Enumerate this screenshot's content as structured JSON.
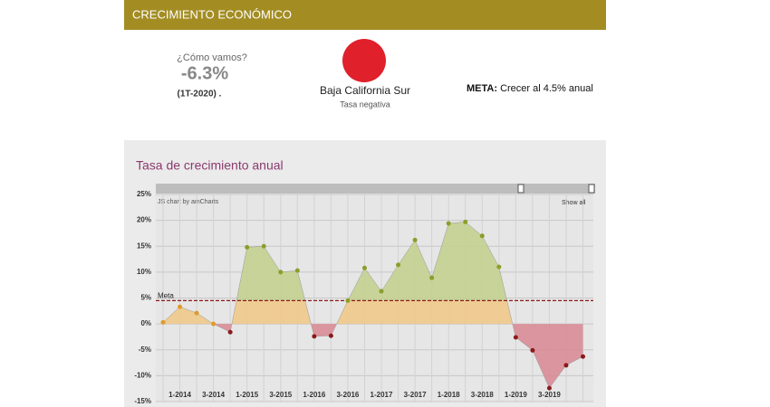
{
  "header": {
    "title": "CRECIMIENTO ECONÓMICO"
  },
  "summary": {
    "question": "¿Cómo vamos?",
    "value": "-6.3%",
    "period": "(1T-2020) .",
    "state": "Baja California Sur",
    "status": "Tasa negativa",
    "goal_label": "META:",
    "goal_text": "Crecer al 4.5% anual"
  },
  "chart_data": {
    "type": "area",
    "title": "Tasa de crecimiento anual",
    "credit": "JS chart by amCharts",
    "show_all": "Show all",
    "categories": [
      null,
      "1-2014",
      null,
      "3-2014",
      null,
      "1-2015",
      null,
      "3-2015",
      null,
      "1-2016",
      null,
      "3-2016",
      null,
      "1-2017",
      null,
      "3-2017",
      null,
      "1-2018",
      null,
      "3-2018",
      null,
      "1-2019",
      null,
      "3-2019",
      null,
      null
    ],
    "values": [
      0.3,
      3.3,
      2.1,
      0,
      -1.6,
      14.8,
      15.0,
      10.0,
      10.3,
      -2.4,
      -2.3,
      4.5,
      10.8,
      6.3,
      11.4,
      16.2,
      8.9,
      19.4,
      19.7,
      17.0,
      11.0,
      -2.6,
      -5.1,
      -12.4,
      -8.0,
      -6.3
    ],
    "ylim": [
      -15,
      25
    ],
    "yticks": [
      {
        "value": -15,
        "label": "-15%"
      },
      {
        "value": -10,
        "label": "-10%"
      },
      {
        "value": -5,
        "label": "-5%"
      },
      {
        "value": 0,
        "label": "0%"
      },
      {
        "value": 5,
        "label": "5%"
      },
      {
        "value": 10,
        "label": "10%"
      },
      {
        "value": 15,
        "label": "15%"
      },
      {
        "value": 20,
        "label": "20%"
      },
      {
        "value": 25,
        "label": "25%"
      }
    ],
    "grid": true,
    "meta": {
      "label": "Meta",
      "value": 4.5,
      "color": "#8b1a1a"
    },
    "colors": {
      "above": "#c3d08f",
      "middle": "#f0c98a",
      "below": "#d98c96",
      "point_above": "#8a9e2a",
      "point_middle": "#e09a2a",
      "point_below": "#8b1a1a"
    }
  }
}
